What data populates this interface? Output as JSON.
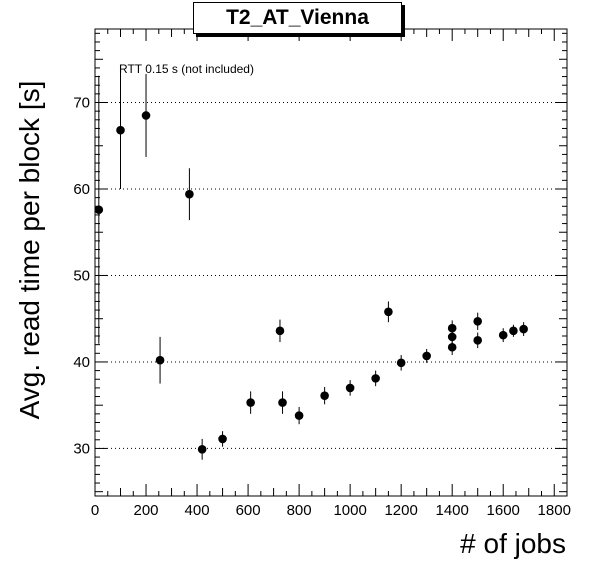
{
  "chart_data": {
    "type": "scatter",
    "title": "T2_AT_Vienna",
    "xlabel": "# of jobs",
    "ylabel": "Avg. read time per block [s]",
    "annotation": "RTT 0.15 s (not included)",
    "xlim": [
      0,
      1850
    ],
    "ylim": [
      24.5,
      78.5
    ],
    "x_ticks": [
      0,
      200,
      400,
      600,
      800,
      1000,
      1200,
      1400,
      1600,
      1800
    ],
    "y_ticks": [
      30,
      40,
      50,
      60,
      70
    ],
    "grid": "horizontal dotted at major y ticks",
    "error_bars": true,
    "series": [
      {
        "x": [
          15,
          100,
          200,
          370,
          255,
          420,
          500,
          610,
          725,
          735,
          800,
          900,
          1000,
          1100,
          1150,
          1200,
          1300,
          1400,
          1400,
          1400,
          1500,
          1500,
          1600,
          1640,
          1680
        ],
        "y": [
          57.6,
          66.8,
          68.5,
          59.4,
          40.2,
          29.9,
          31.1,
          35.3,
          43.6,
          35.3,
          33.8,
          36.1,
          37.0,
          38.1,
          45.8,
          39.9,
          40.7,
          43.9,
          42.9,
          41.7,
          44.7,
          42.5,
          43.1,
          43.6,
          43.8
        ],
        "err": [
          15.5,
          6.8,
          4.8,
          3.0,
          2.7,
          1.2,
          0.9,
          1.3,
          1.3,
          1.3,
          1.0,
          1.0,
          0.9,
          0.9,
          1.2,
          0.9,
          0.8,
          0.9,
          0.8,
          0.9,
          1.0,
          0.9,
          0.8,
          0.7,
          0.8
        ]
      }
    ]
  }
}
